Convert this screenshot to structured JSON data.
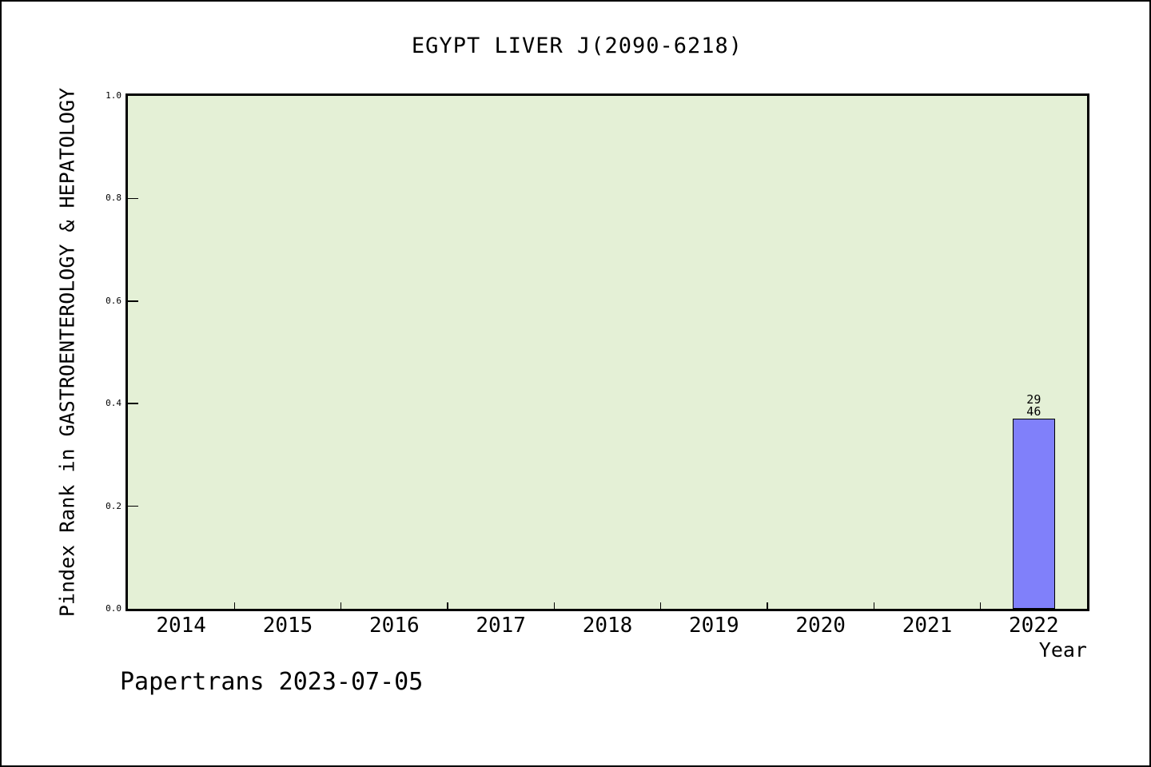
{
  "page": {
    "footer": "Papertrans 2023-07-05"
  },
  "chart_data": {
    "type": "bar",
    "title": "EGYPT LIVER J(2090-6218)",
    "xlabel": "Year",
    "ylabel": "Pindex Rank in GASTROENTEROLOGY & HEPATOLOGY",
    "categories": [
      "2014",
      "2015",
      "2016",
      "2017",
      "2018",
      "2019",
      "2020",
      "2021",
      "2022"
    ],
    "values": [
      null,
      null,
      null,
      null,
      null,
      null,
      null,
      null,
      0.37
    ],
    "annotations": [
      {
        "category": "2022",
        "lines": [
          "29",
          "46"
        ]
      }
    ],
    "ylim": [
      0,
      1
    ],
    "ytick_labels": [
      "0.0",
      "0.2",
      "0.4",
      "0.6",
      "0.8",
      "1.0"
    ],
    "grid": false,
    "legend_position": "none",
    "bar_width_fraction": 0.4,
    "colors": {
      "plot_bg": "#e4f0d6",
      "bar_fill": "#8080fa",
      "bar_edge": "#000000",
      "axis": "#000000",
      "text": "#000000",
      "page_bg": "#ffffff"
    }
  }
}
